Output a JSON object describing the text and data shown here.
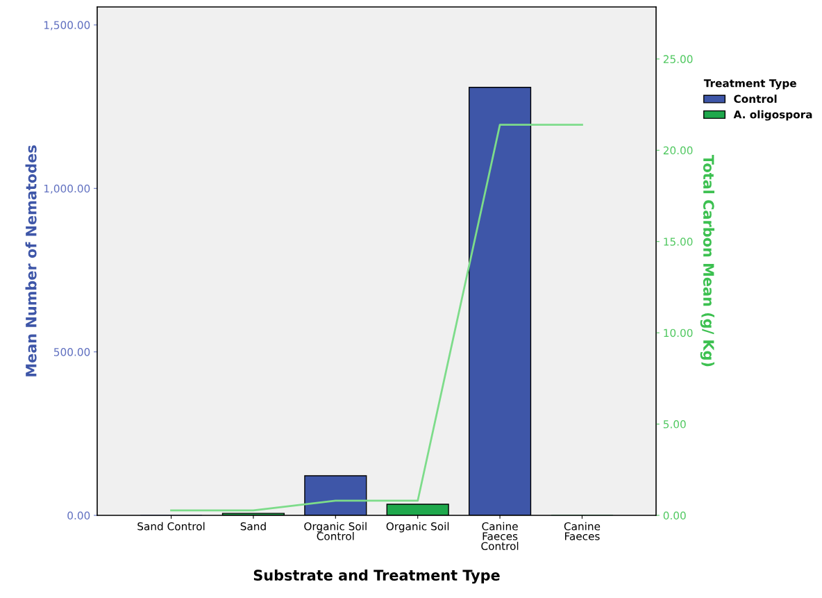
{
  "chart_data": {
    "type": "bar",
    "xlabel": "Substrate and Treatment Type",
    "ylabel": "Mean Number of Nematodes",
    "y2label": "Total Carbon Mean (g/ Kg)",
    "legend_title": "Treatment Type",
    "categories": [
      "Sand Control",
      "Sand",
      "Organic Soil\nControl",
      "Organic Soil",
      "Canine\nFaeces\nControl",
      "Canine\nFaeces"
    ],
    "series": [
      {
        "name": "Control",
        "color": "#3e56a8",
        "values": [
          0,
          null,
          121,
          null,
          1309,
          null
        ]
      },
      {
        "name": "A. oligospora",
        "color": "#1fa84c",
        "values": [
          null,
          6,
          null,
          34,
          null,
          0
        ]
      },
      {
        "type": "line",
        "axis": "y2",
        "color": "#7ddc8a",
        "values": [
          0.27,
          0.27,
          0.8,
          0.8,
          21.4,
          21.4
        ]
      }
    ],
    "ylim": [
      0,
      1555
    ],
    "yticks": [
      {
        "value": 0,
        "label": "0.00"
      },
      {
        "value": 500,
        "label": "500.00"
      },
      {
        "value": 1000,
        "label": "1,000.00"
      },
      {
        "value": 1500,
        "label": "1,500.00"
      }
    ],
    "y2lim": [
      0,
      27.85
    ],
    "y2ticks": [
      {
        "value": 0,
        "label": "0.00"
      },
      {
        "value": 5,
        "label": "5.00"
      },
      {
        "value": 10,
        "label": "10.00"
      },
      {
        "value": 15,
        "label": "15.00"
      },
      {
        "value": 20,
        "label": "20.00"
      },
      {
        "value": 25,
        "label": "25.00"
      }
    ],
    "legend": "top right"
  }
}
